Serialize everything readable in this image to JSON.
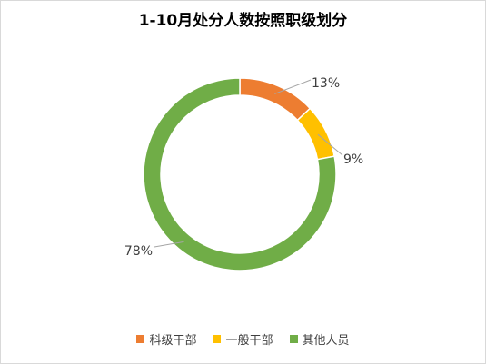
{
  "chart_data": {
    "type": "pie",
    "style": "doughnut",
    "title": "1-10月处分人数按照职级划分",
    "categories": [
      "科级干部",
      "一般干部",
      "其他人员"
    ],
    "values": [
      13,
      9,
      78
    ],
    "labels": [
      "13%",
      "9%",
      "78%"
    ],
    "colors": [
      "#ED7D31",
      "#FFC000",
      "#70AD47"
    ],
    "legend_position": "bottom"
  }
}
